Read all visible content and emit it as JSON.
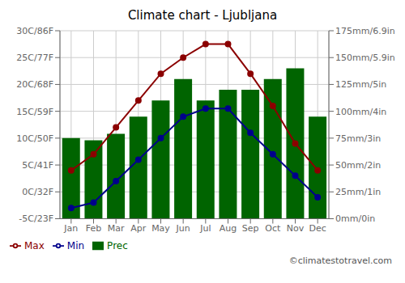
{
  "chart_data": {
    "type": "bar",
    "title": "Climate chart - Ljubljana",
    "categories": [
      "Jan",
      "Feb",
      "Mar",
      "Apr",
      "May",
      "Jun",
      "Jul",
      "Aug",
      "Sep",
      "Oct",
      "Nov",
      "Dec"
    ],
    "series": [
      {
        "name": "Prec",
        "type": "bar",
        "axis": "y2",
        "color": "#006400",
        "values": [
          75,
          73,
          79,
          95,
          110,
          130,
          110,
          120,
          120,
          130,
          140,
          95
        ]
      },
      {
        "name": "Min",
        "type": "line",
        "marker": "circle",
        "color": "#00008B",
        "values": [
          -3,
          -2,
          2,
          6,
          10,
          14,
          15.5,
          15.5,
          11,
          7,
          3,
          -1
        ]
      },
      {
        "name": "Max",
        "type": "line",
        "marker": "circle",
        "color": "#8B0000",
        "values": [
          4,
          7,
          12,
          17,
          22,
          25,
          27.5,
          27.5,
          22,
          16,
          9,
          4
        ]
      }
    ],
    "ylim": [
      -5,
      30
    ],
    "yticks": [
      {
        "value": -5,
        "label": "-5C/23F"
      },
      {
        "value": 0,
        "label": "0C/32F"
      },
      {
        "value": 5,
        "label": "5C/41F"
      },
      {
        "value": 10,
        "label": "10C/50F"
      },
      {
        "value": 15,
        "label": "15C/59F"
      },
      {
        "value": 20,
        "label": "20C/68F"
      },
      {
        "value": 25,
        "label": "25C/77F"
      },
      {
        "value": 30,
        "label": "30C/86F"
      }
    ],
    "y2lim": [
      0,
      175
    ],
    "y2ticks": [
      {
        "value": 0,
        "label": "0mm/0in"
      },
      {
        "value": 25,
        "label": "25mm/1in"
      },
      {
        "value": 50,
        "label": "50mm/2in"
      },
      {
        "value": 75,
        "label": "75mm/3in"
      },
      {
        "value": 100,
        "label": "100mm/4in"
      },
      {
        "value": 125,
        "label": "125mm/5in"
      },
      {
        "value": 150,
        "label": "150mm/5.9in"
      },
      {
        "value": 175,
        "label": "175mm/6.9in"
      }
    ],
    "grid": true,
    "legend": "bottom",
    "annotations": [
      "©climatestotravel.com"
    ]
  }
}
